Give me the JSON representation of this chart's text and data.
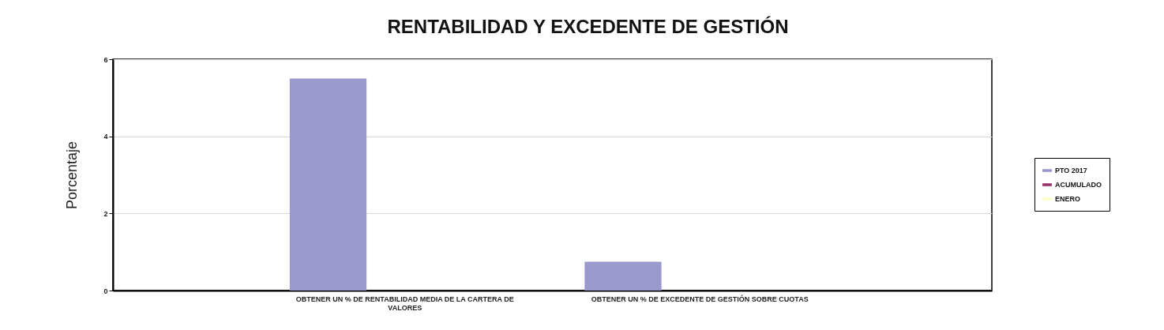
{
  "chart_data": {
    "type": "bar",
    "title": "RENTABILIDAD Y EXCEDENTE DE GESTIÓN",
    "ylabel": "Porcentaje",
    "categories": [
      "OBTENER UN % DE RENTABILIDAD MEDIA DE LA CARTERA DE VALORES",
      "OBTENER UN % DE EXCEDENTE DE GESTIÓN SOBRE CUOTAS"
    ],
    "series": [
      {
        "name": "PTO 2017",
        "color": "#9999cc",
        "values": [
          5.5,
          0.75
        ]
      },
      {
        "name": "ACUMULADO",
        "color": "#993366",
        "values": [
          null,
          null
        ]
      },
      {
        "name": "ENERO",
        "color": "#ffffcc",
        "values": [
          null,
          null
        ]
      }
    ],
    "ylim": [
      0,
      6
    ],
    "yticks": [
      0,
      2,
      4,
      6
    ],
    "grid": "y",
    "legend": "right"
  }
}
